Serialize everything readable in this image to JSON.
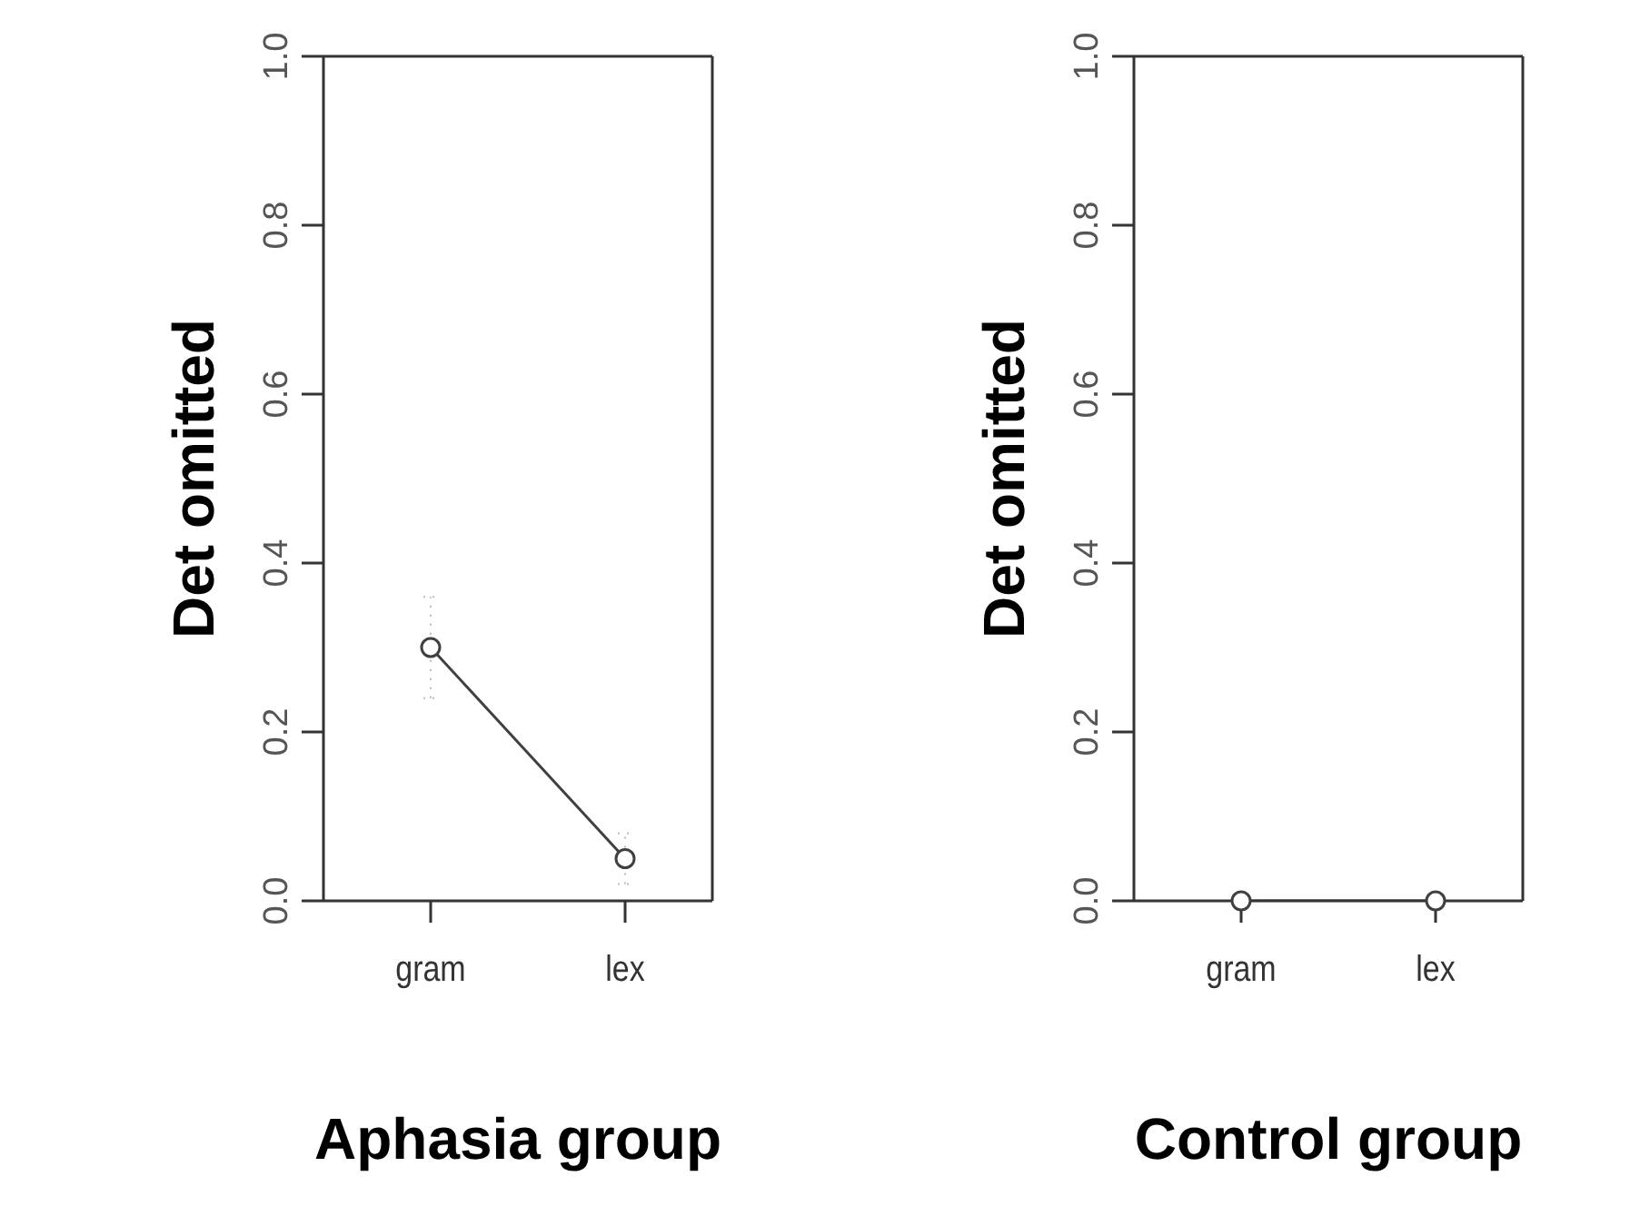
{
  "chart_data": [
    {
      "type": "line",
      "categories": [
        "gram",
        "lex"
      ],
      "xlabel": "Aphasia group",
      "ylabel": "Det omitted",
      "ylim": [
        0,
        1
      ],
      "yticks": [
        {
          "value": 0,
          "label": "0.0"
        },
        {
          "value": 0.2,
          "label": "0.2"
        },
        {
          "value": 0.4,
          "label": "0.4"
        },
        {
          "value": 0.6,
          "label": "0.6"
        },
        {
          "value": 0.8,
          "label": "0.8"
        },
        {
          "value": 1,
          "label": "1.0"
        }
      ],
      "marker": "circle",
      "grid": false,
      "series": [
        {
          "color": "#404040",
          "values": [
            0.3,
            0.05
          ],
          "errors": [
            [
              0.24,
              0.36
            ],
            [
              0.02,
              0.08
            ]
          ]
        }
      ]
    },
    {
      "type": "line",
      "categories": [
        "gram",
        "lex"
      ],
      "xlabel": "Control group",
      "ylabel": "Det omitted",
      "ylim": [
        0,
        1
      ],
      "yticks": [
        {
          "value": 0,
          "label": "0.0"
        },
        {
          "value": 0.2,
          "label": "0.2"
        },
        {
          "value": 0.4,
          "label": "0.4"
        },
        {
          "value": 0.6,
          "label": "0.6"
        },
        {
          "value": 0.8,
          "label": "0.8"
        },
        {
          "value": 1,
          "label": "1.0"
        }
      ],
      "marker": "circle",
      "grid": false,
      "series": [
        {
          "color": "#404040",
          "values": [
            0,
            0
          ]
        }
      ]
    }
  ]
}
